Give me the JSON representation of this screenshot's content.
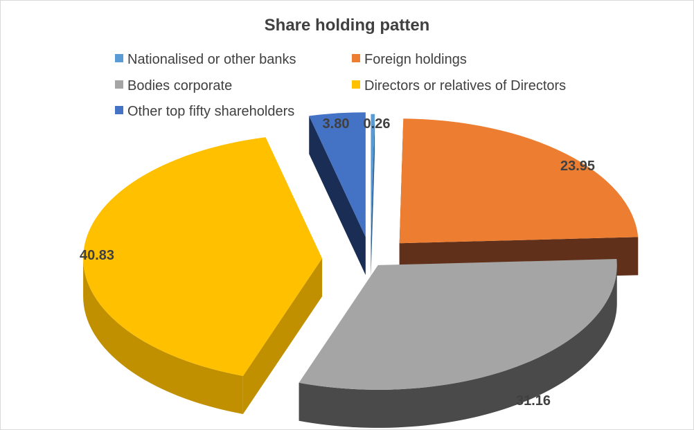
{
  "chart_data": {
    "type": "pie",
    "title": "Share holding patten",
    "legend_position": "top",
    "slices": [
      {
        "label": "Nationalised or other banks",
        "value": 0.26,
        "value_label": "0.26",
        "color": "#5b9bd5",
        "side_color": "#2f5f8f"
      },
      {
        "label": "Foreign holdings",
        "value": 23.95,
        "value_label": "23.95",
        "color": "#ed7d31",
        "side_color": "#60301a"
      },
      {
        "label": "Bodies corporate",
        "value": 31.16,
        "value_label": "31.16",
        "color": "#a5a5a5",
        "side_color": "#4a4a4a"
      },
      {
        "label": "Directors or relatives of Directors",
        "value": 40.83,
        "value_label": "40.83",
        "color": "#ffc000",
        "side_color": "#c09000"
      },
      {
        "label": "Other top fifty shareholders",
        "value": 3.8,
        "value_label": "3.80",
        "color": "#4472c4",
        "side_color": "#1a2d55"
      }
    ]
  }
}
